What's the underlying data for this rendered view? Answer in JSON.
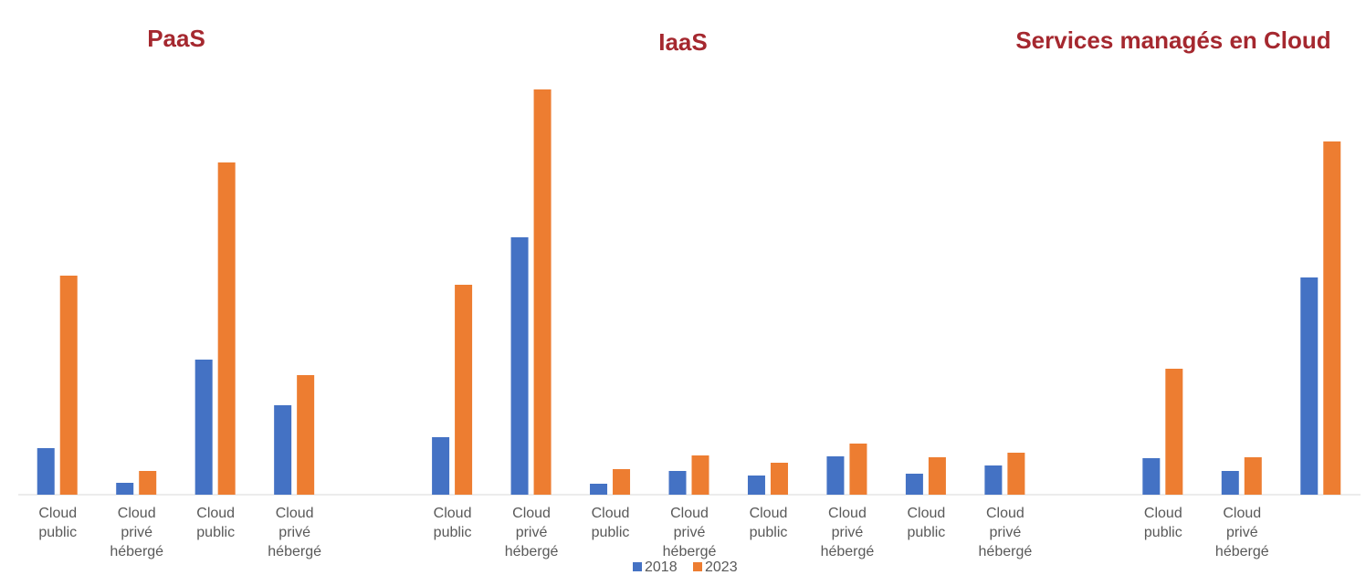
{
  "chart_data": {
    "type": "bar",
    "group_titles": [
      "PaaS",
      "IaaS",
      "Services managés en Cloud"
    ],
    "categories": [
      "Cloud public",
      "Cloud privé hébergé",
      "Cloud public",
      "Cloud privé hébergé",
      null,
      "Cloud public",
      "Cloud privé hébergé",
      "Cloud public",
      "Cloud privé hébergé",
      "Cloud public",
      "Cloud privé hébergé",
      "Cloud public",
      "Cloud privé hébergé",
      null,
      "Cloud public",
      "Cloud privé hébergé",
      null
    ],
    "series": [
      {
        "name": "2018",
        "color": "#4472c4",
        "values": [
          51,
          13,
          148,
          98,
          null,
          63,
          282,
          12,
          26,
          21,
          42,
          23,
          32,
          null,
          40,
          26,
          238
        ]
      },
      {
        "name": "2023",
        "color": "#ed7d31",
        "values": [
          240,
          26,
          364,
          131,
          null,
          230,
          444,
          28,
          43,
          35,
          56,
          41,
          46,
          null,
          138,
          41,
          387
        ]
      }
    ],
    "ylim": [
      0,
      450
    ]
  }
}
